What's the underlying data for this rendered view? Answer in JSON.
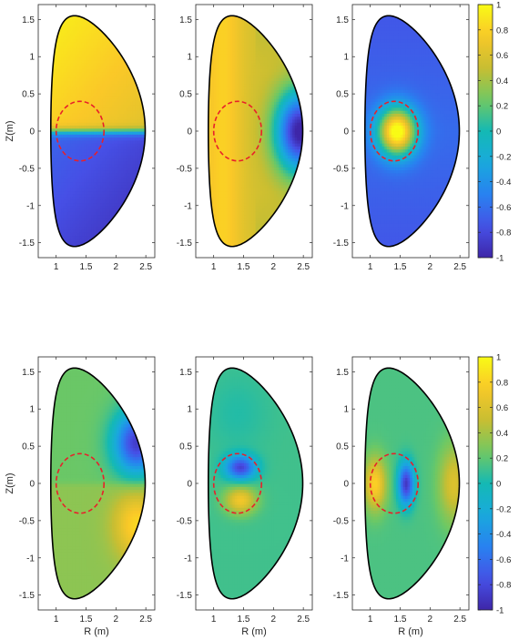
{
  "figure": {
    "xlabel": "R (m)",
    "ylabel": "Z(m)",
    "colormap": "parula",
    "dashed_circle_color": "#e8202a",
    "boundary_color": "#000000"
  },
  "chart_data": [
    {
      "type": "heatmap",
      "panel": "top-left",
      "xlabel": "",
      "ylabel": "Z(m)",
      "xlim": [
        0.7,
        2.65
      ],
      "ylim": [
        -1.7,
        1.7
      ],
      "xticks": [
        "1",
        "1.5",
        "2",
        "2.5"
      ],
      "yticks": [
        "-1.5",
        "-1",
        "-0.5",
        "0",
        "0.5",
        "1",
        "1.5"
      ],
      "pattern": "upper half positive (~0.7), lower half negative (~-0.7), sharp transition at Z=0",
      "dashed_circle": {
        "center_R": 1.4,
        "center_Z": 0,
        "radius": 0.4
      }
    },
    {
      "type": "heatmap",
      "panel": "top-middle",
      "xlabel": "",
      "ylabel": "",
      "xlim": [
        0.7,
        2.65
      ],
      "ylim": [
        -1.7,
        1.7
      ],
      "xticks": [
        "1",
        "1.5",
        "2",
        "2.5"
      ],
      "yticks": [
        "-1.5",
        "-1",
        "-0.5",
        "0",
        "0.5",
        "1",
        "1.5"
      ],
      "pattern": "positive (~0.8) on inboard side and near R=1.2, strongly negative (~-0.85) at outboard midplane R~2.4",
      "dashed_circle": {
        "center_R": 1.4,
        "center_Z": 0,
        "radius": 0.4
      }
    },
    {
      "type": "heatmap",
      "panel": "top-right",
      "xlabel": "",
      "ylabel": "",
      "xlim": [
        0.7,
        2.65
      ],
      "ylim": [
        -1.7,
        1.7
      ],
      "xticks": [
        "1",
        "1.5",
        "2",
        "2.5"
      ],
      "yticks": [
        "-1.5",
        "-1",
        "-0.5",
        "0",
        "0.5",
        "1",
        "1.5"
      ],
      "pattern": "localized peak ~1 at (1.45, 0), background ~-0.7",
      "dashed_circle": {
        "center_R": 1.4,
        "center_Z": 0,
        "radius": 0.4
      }
    },
    {
      "type": "heatmap",
      "panel": "bottom-left",
      "xlabel": "R (m)",
      "ylabel": "Z(m)",
      "xlim": [
        0.7,
        2.65
      ],
      "ylim": [
        -1.7,
        1.7
      ],
      "xticks": [
        "1",
        "1.5",
        "2",
        "2.5"
      ],
      "yticks": [
        "-1.5",
        "-1",
        "-0.5",
        "0",
        "0.5",
        "1",
        "1.5"
      ],
      "pattern": "negative lobe (~-0.8) at (2.35, 0.55), positive lobe (~0.75) at (2.35, -0.55), background ~0.2-0.3",
      "dashed_circle": {
        "center_R": 1.4,
        "center_Z": 0,
        "radius": 0.4
      }
    },
    {
      "type": "heatmap",
      "panel": "bottom-middle",
      "xlabel": "R (m)",
      "ylabel": "",
      "xlim": [
        0.7,
        2.65
      ],
      "ylim": [
        -1.7,
        1.7
      ],
      "xticks": [
        "1",
        "1.5",
        "2",
        "2.5"
      ],
      "yticks": [
        "-1.5",
        "-1",
        "-0.5",
        "0",
        "0.5",
        "1",
        "1.5"
      ],
      "pattern": "negative spot (~-0.85) at (1.45, 0.22), positive spot (~0.7) at (1.45, -0.22), background ~0.1",
      "dashed_circle": {
        "center_R": 1.4,
        "center_Z": 0,
        "radius": 0.4
      }
    },
    {
      "type": "heatmap",
      "panel": "bottom-right",
      "xlabel": "R (m)",
      "ylabel": "",
      "xlim": [
        0.7,
        2.65
      ],
      "ylim": [
        -1.7,
        1.7
      ],
      "xticks": [
        "1",
        "1.5",
        "2",
        "2.5"
      ],
      "yticks": [
        "-1.5",
        "-1",
        "-0.5",
        "0",
        "0.5",
        "1",
        "1.5"
      ],
      "pattern": "positive (~0.8) at (1.1, 0), negative (~-0.9) at (1.6, 0), positive (~0.6) at (2.4, 0), background ~0.15",
      "dashed_circle": {
        "center_R": 1.4,
        "center_Z": 0,
        "radius": 0.4
      }
    },
    {
      "type": "colorbar",
      "panel": "top-colorbar",
      "range": [
        -1,
        1
      ],
      "ticks": [
        "1",
        "0.8",
        "0.6",
        "0.4",
        "0.2",
        "0",
        "-0.2",
        "-0.4",
        "-0.6",
        "-0.8",
        "-1"
      ]
    },
    {
      "type": "colorbar",
      "panel": "bottom-colorbar",
      "range": [
        -1,
        1
      ],
      "ticks": [
        "1",
        "0.8",
        "0.6",
        "0.4",
        "0.2",
        "0",
        "-0.2",
        "-0.4",
        "-0.6",
        "-0.8",
        "-1"
      ]
    }
  ]
}
